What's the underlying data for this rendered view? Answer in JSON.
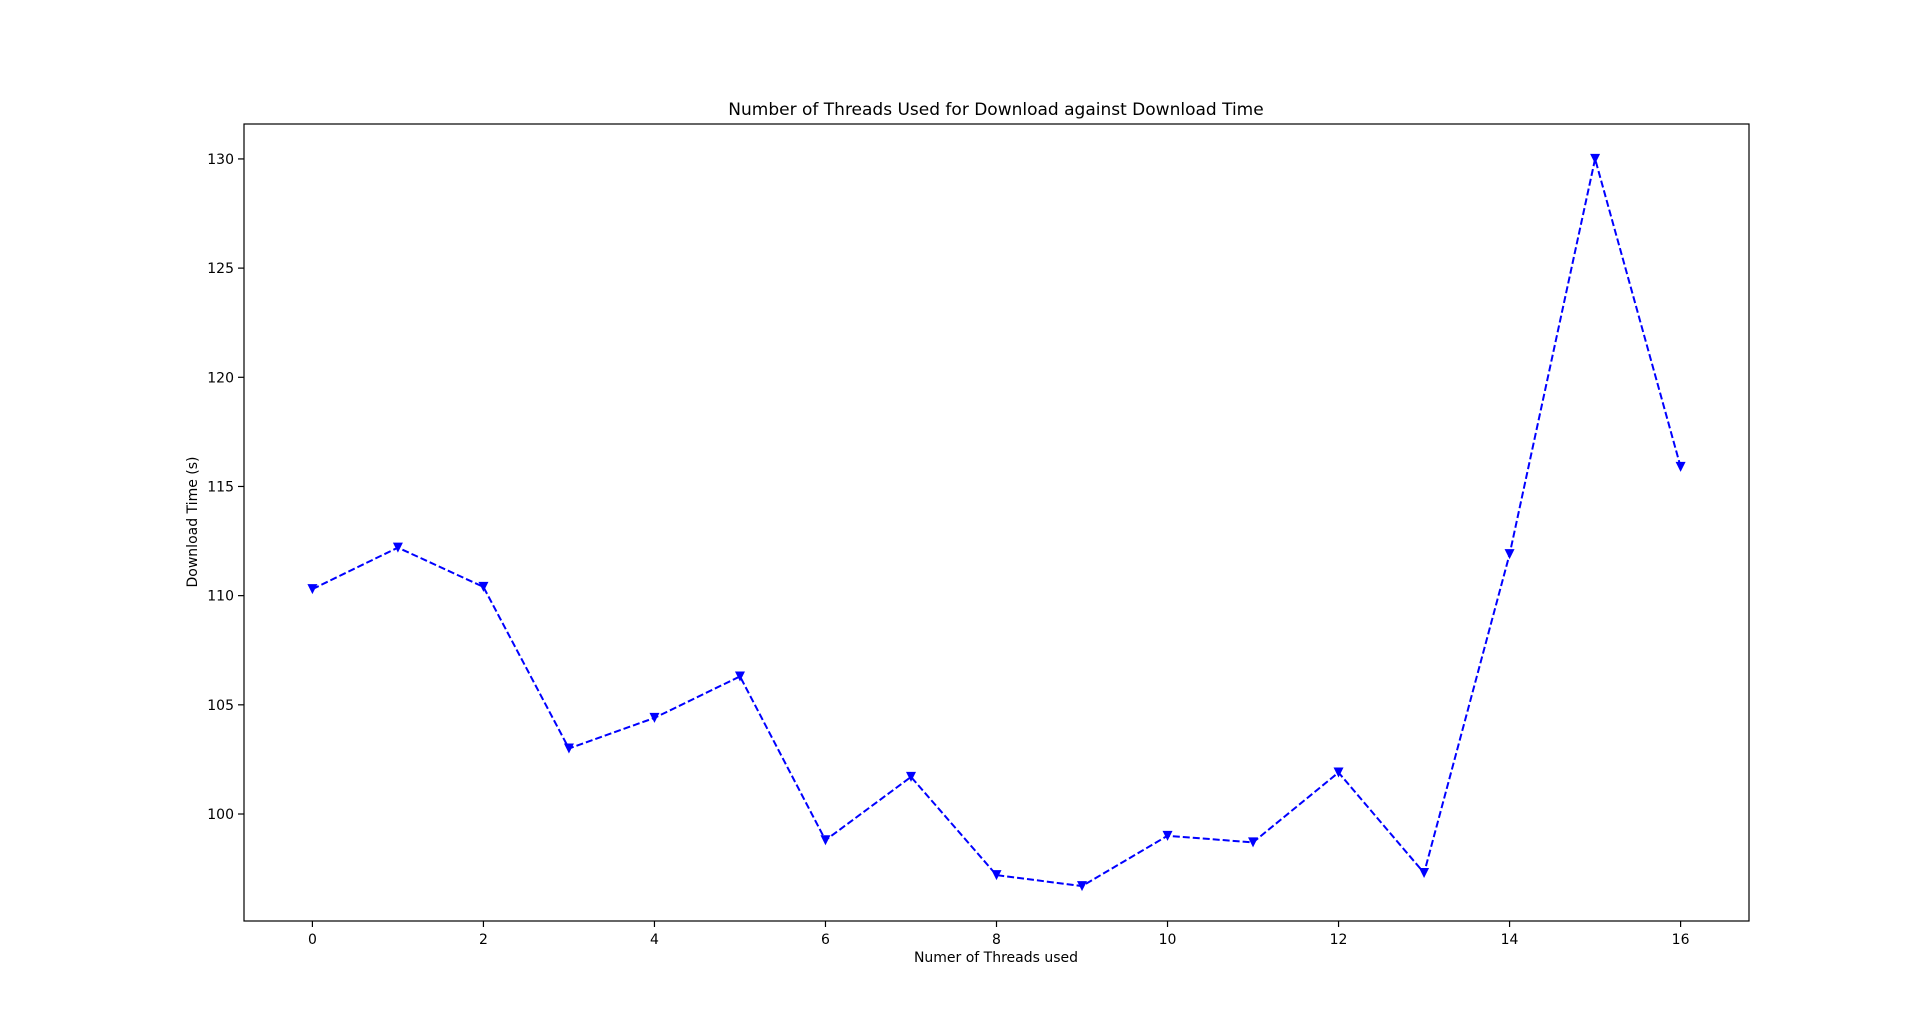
{
  "chart_data": {
    "type": "line",
    "title": "Number of Threads Used for Download against Download Time",
    "xlabel": "Numer of Threads used",
    "ylabel": "Download Time (s)",
    "xlim": [
      -0.8,
      16.8
    ],
    "ylim": [
      95.1,
      131.6
    ],
    "xticks": [
      0,
      2,
      4,
      6,
      8,
      10,
      12,
      14,
      16
    ],
    "yticks": [
      100,
      105,
      110,
      115,
      120,
      125,
      130
    ],
    "grid": false,
    "legend": "none",
    "series": [
      {
        "color": "#0000ff",
        "line_style": "dashed",
        "marker": "triangle-down",
        "x": [
          0,
          1,
          2,
          3,
          4,
          5,
          6,
          7,
          8,
          9,
          10,
          11,
          12,
          13,
          14,
          15,
          16
        ],
        "y": [
          110.3,
          112.2,
          110.4,
          103.0,
          104.4,
          106.3,
          98.8,
          101.7,
          97.2,
          96.7,
          99.0,
          98.7,
          101.9,
          97.3,
          111.9,
          130.0,
          115.9
        ]
      }
    ]
  }
}
